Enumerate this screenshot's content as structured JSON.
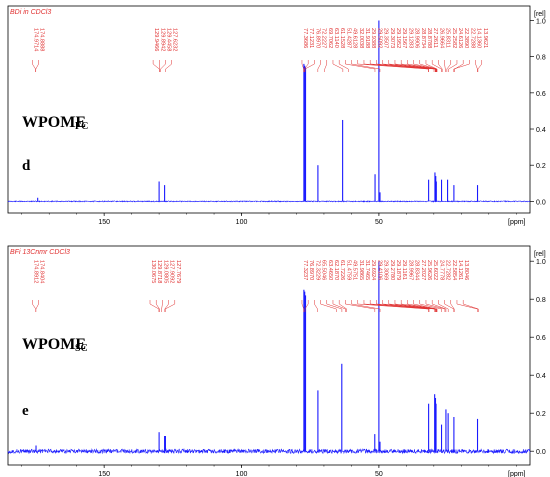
{
  "chart_data": [
    {
      "type": "line",
      "panel_label": "d",
      "sample_label": "WPOME",
      "sample_subscript": "FC",
      "header": "BDi in CDCl3",
      "xlabel": "[ppm]",
      "ylabel": "[rel]",
      "xlim": [
        185,
        -5
      ],
      "ylim": [
        -0.02,
        1.08
      ],
      "x_ticks": [
        "150",
        "100",
        "50"
      ],
      "y_ticks": [
        "1.0",
        "0.8",
        "0.6",
        "0.4",
        "0.2",
        "0.0"
      ],
      "x_tick_values": [
        150,
        100,
        50
      ],
      "y_tick_values": [
        1.0,
        0.8,
        0.6,
        0.4,
        0.2,
        0.0
      ],
      "peaks_x": [
        174.2,
        130.0,
        128.0,
        77.3,
        77.0,
        76.7,
        72.2,
        63.2,
        51.4,
        50.0,
        49.6,
        31.9,
        29.6,
        29.3,
        29.1,
        27.2,
        25.0,
        22.7,
        14.1
      ],
      "peaks_y": [
        0.02,
        0.11,
        0.09,
        0.76,
        0.75,
        0.74,
        0.2,
        0.45,
        0.15,
        1.0,
        0.05,
        0.12,
        0.16,
        0.14,
        0.11,
        0.12,
        0.12,
        0.09,
        0.09
      ],
      "peak_labels": [
        "174.9714",
        "174.8888",
        "129.9466",
        "129.8942",
        "129.4458",
        "127.6232",
        "77.3686",
        "77.1231",
        "76.8970",
        "72.2227",
        "69.7062",
        "63.1140",
        "61.1528",
        "51.4287",
        "49.6128",
        "32.0038",
        "31.9188",
        "29.9388",
        "29.5092",
        "29.3507",
        "29.3073",
        "29.1952",
        "29.1567",
        "29.1283",
        "28.9906",
        "28.8734",
        "28.8788",
        "27.2611",
        "26.9664",
        "25.8311",
        "25.2582",
        "24.6126",
        "22.3890",
        "22.7288",
        "14.1360",
        "13.9621"
      ]
    },
    {
      "type": "line",
      "panel_label": "e",
      "sample_label": "WPOME",
      "sample_subscript": "SC",
      "header": "BFi 13Cnmr CDCl3",
      "xlabel": "[ppm]",
      "ylabel": "[rel]",
      "xlim": [
        185,
        -5
      ],
      "ylim": [
        -0.02,
        1.08
      ],
      "x_ticks": [
        "150",
        "100",
        "50"
      ],
      "y_ticks": [
        "1.0",
        "0.8",
        "0.6",
        "0.4",
        "0.2",
        "0.0"
      ],
      "x_tick_values": [
        150,
        100,
        50
      ],
      "y_tick_values": [
        1.0,
        0.8,
        0.6,
        0.4,
        0.2,
        0.0
      ],
      "peaks_x": [
        174.8,
        130.0,
        128.0,
        127.7,
        77.3,
        77.0,
        76.7,
        72.2,
        63.5,
        51.5,
        50.0,
        49.6,
        31.9,
        29.7,
        29.4,
        29.2,
        27.2,
        25.6,
        24.8,
        22.7,
        14.1
      ],
      "peaks_y": [
        0.03,
        0.1,
        0.08,
        0.08,
        0.85,
        0.84,
        0.82,
        0.32,
        0.46,
        0.09,
        1.0,
        0.05,
        0.25,
        0.3,
        0.28,
        0.25,
        0.14,
        0.22,
        0.2,
        0.18,
        0.17
      ],
      "peak_labels": [
        "174.8912",
        "174.8404",
        "130.0675",
        "129.8718",
        "129.0805",
        "127.9092",
        "127.7679",
        "77.3237",
        "76.8970",
        "72.3229",
        "65.5046",
        "63.4650",
        "62.1870",
        "61.7226",
        "51.4759",
        "49.5751",
        "31.9865",
        "31.7465",
        "29.6924",
        "29.4106",
        "29.3069",
        "29.2780",
        "29.1879",
        "29.1161",
        "28.9967",
        "28.8344",
        "27.2027",
        "25.9626",
        "25.6022",
        "24.7778",
        "22.7282",
        "22.5854",
        "14.1261",
        "13.8046"
      ]
    }
  ]
}
